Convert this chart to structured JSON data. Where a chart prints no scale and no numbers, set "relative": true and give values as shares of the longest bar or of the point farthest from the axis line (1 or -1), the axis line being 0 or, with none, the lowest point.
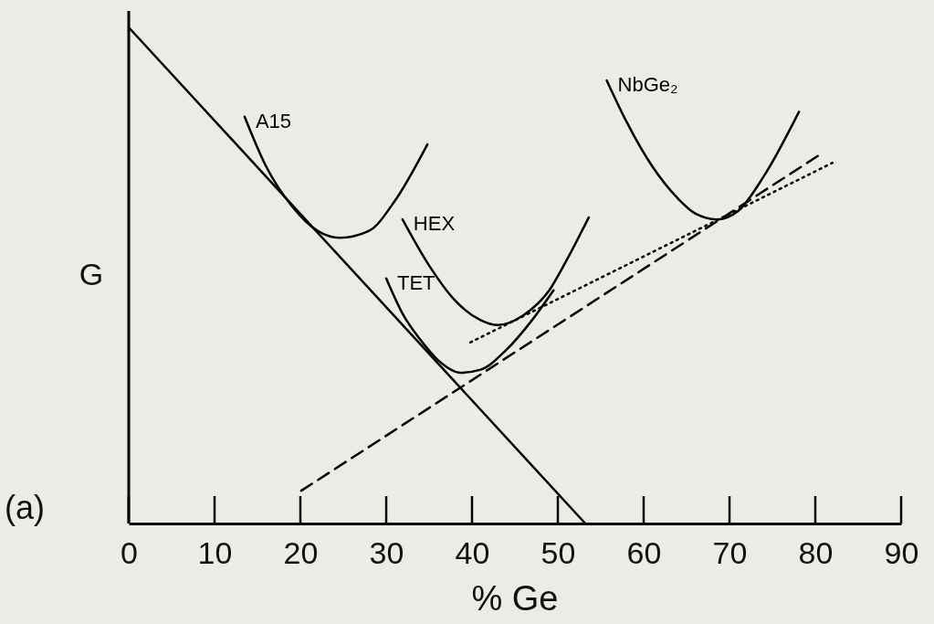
{
  "chart_data": {
    "type": "line",
    "relative": true,
    "xlabel": "% Ge",
    "ylabel": "G",
    "xlim": [
      0,
      90
    ],
    "xticks": [
      0,
      10,
      20,
      30,
      40,
      50,
      60,
      70,
      80,
      90
    ],
    "annotations": [
      "(a)"
    ],
    "series": [
      {
        "color": "#000000",
        "line_style": "solid",
        "x": [
          0,
          53.2
        ],
        "values": [
          1,
          0
        ]
      },
      {
        "name": "A15",
        "color": "#000000",
        "line_style": "solid",
        "x": [
          13.5,
          16,
          19,
          22,
          24.6,
          28,
          31,
          34.8
        ],
        "values": [
          0.82,
          0.72,
          0.64,
          0.59,
          0.576,
          0.59,
          0.65,
          0.764
        ]
      },
      {
        "name": "HEX",
        "color": "#000000",
        "line_style": "solid",
        "x": [
          31.9,
          35,
          38,
          41,
          43,
          46,
          49,
          51,
          53.6
        ],
        "values": [
          0.613,
          0.52,
          0.45,
          0.41,
          0.4,
          0.42,
          0.47,
          0.53,
          0.617
        ]
      },
      {
        "name": "TET",
        "color": "#000000",
        "line_style": "solid",
        "x": [
          30,
          32,
          34,
          36,
          38.7,
          41,
          44,
          47,
          49.5
        ],
        "values": [
          0.494,
          0.42,
          0.37,
          0.33,
          0.304,
          0.31,
          0.35,
          0.41,
          0.47
        ]
      },
      {
        "name": "NbGe₂",
        "color": "#000000",
        "line_style": "solid",
        "x": [
          55.7,
          58,
          61,
          64,
          66,
          68.5,
          71,
          74,
          78.1
        ],
        "values": [
          0.893,
          0.81,
          0.72,
          0.655,
          0.625,
          0.613,
          0.63,
          0.7,
          0.83
        ]
      },
      {
        "color": "#000000",
        "line_style": "dashed",
        "x": [
          20.1,
          80.4
        ],
        "values": [
          0.066,
          0.742
        ]
      },
      {
        "color": "#000000",
        "line_style": "dotted",
        "x": [
          39.8,
          82
        ],
        "values": [
          0.365,
          0.727
        ]
      }
    ]
  }
}
